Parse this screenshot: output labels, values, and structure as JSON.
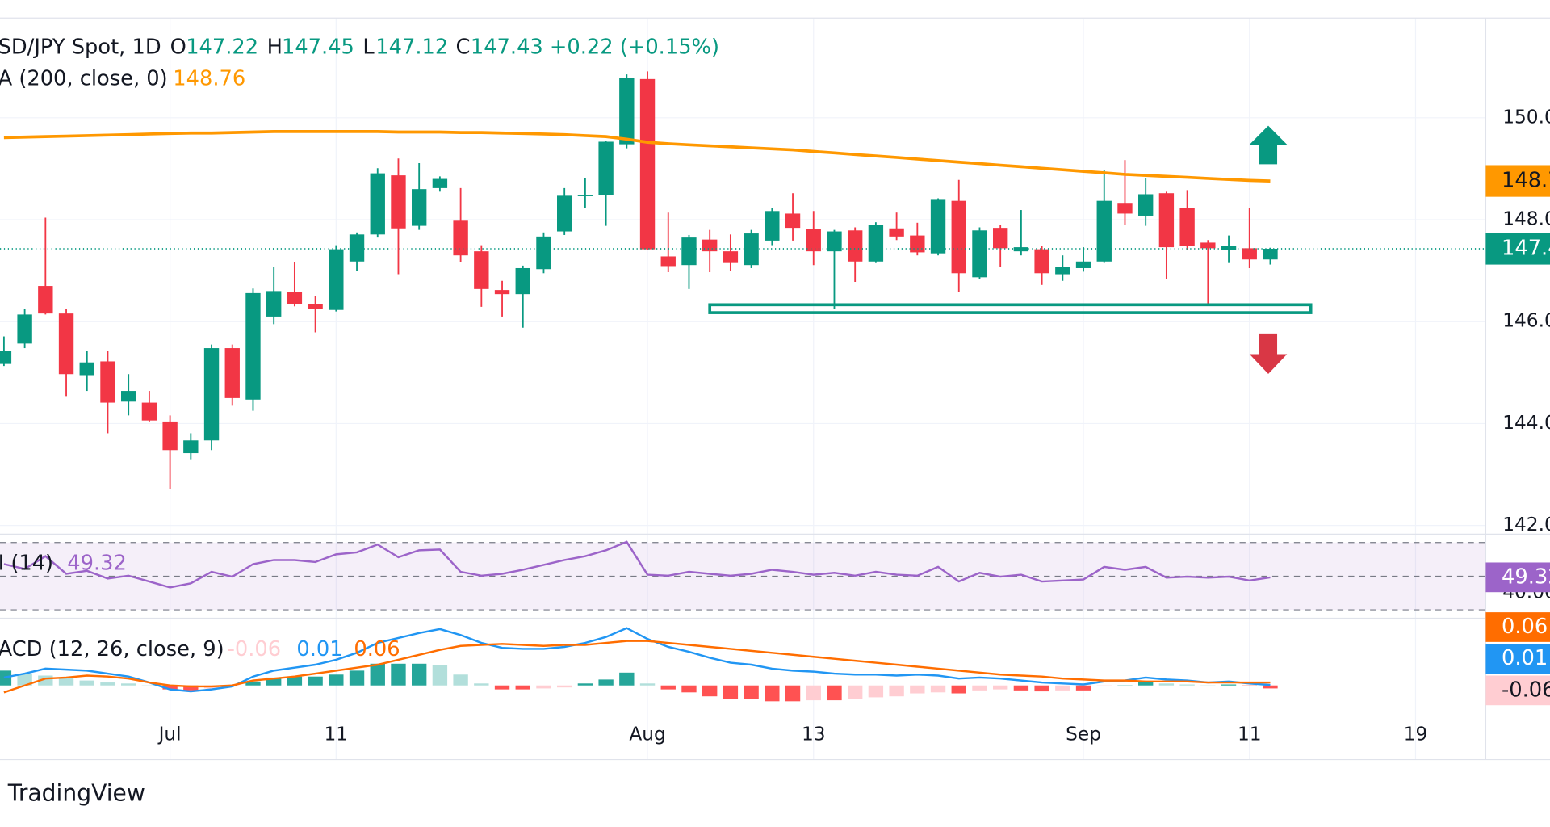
{
  "chart_data": [
    {
      "type": "candlestick",
      "title": "SD/JPY Spot, 1D",
      "ohlc_labels": [
        "O",
        "H",
        "L",
        "C"
      ],
      "change_label": "+0.22 (+0.15%)",
      "up_color": "#089981",
      "down_color": "#f23645",
      "categories": [
        null,
        null,
        null,
        null,
        null,
        null,
        null,
        null,
        "Jul",
        null,
        null,
        null,
        null,
        null,
        null,
        null,
        "11",
        null,
        null,
        null,
        null,
        null,
        null,
        null,
        null,
        null,
        null,
        null,
        null,
        null,
        null,
        "Aug",
        null,
        null,
        null,
        null,
        null,
        null,
        null,
        "13",
        null,
        null,
        null,
        null,
        null,
        null,
        null,
        null,
        null,
        null,
        null,
        null,
        "Sep",
        null,
        null,
        null,
        null,
        null,
        null,
        null,
        "11",
        null,
        null,
        null,
        null,
        null,
        null,
        null,
        "19",
        null,
        null,
        null
      ],
      "open": [
        145.17,
        145.57,
        146.7,
        146.16,
        144.95,
        145.22,
        144.43,
        144.41,
        144.04,
        143.42,
        143.67,
        145.48,
        144.47,
        146.1,
        146.58,
        146.35,
        146.23,
        147.18,
        147.71,
        148.87,
        147.88,
        148.62,
        147.98,
        147.38,
        146.62,
        146.54,
        147.03,
        147.77,
        148.47,
        148.49,
        149.48,
        150.76,
        147.28,
        147.11,
        147.61,
        147.38,
        147.11,
        147.59,
        148.12,
        147.81,
        147.38,
        147.79,
        147.18,
        147.83,
        147.69,
        147.34,
        148.37,
        146.87,
        147.84,
        147.38,
        147.42,
        146.93,
        147.05,
        147.18,
        148.33,
        148.08,
        148.52,
        148.23,
        147.55,
        147.4,
        147.44,
        147.22,
        null,
        null,
        null,
        null,
        null,
        null,
        null,
        null,
        null,
        null
      ],
      "high": [
        145.71,
        146.25,
        148.04,
        146.25,
        145.42,
        145.42,
        144.97,
        144.64,
        144.16,
        143.81,
        145.55,
        145.55,
        146.65,
        147.07,
        147.17,
        146.5,
        147.5,
        147.75,
        149.01,
        149.2,
        149.11,
        148.85,
        148.62,
        147.5,
        146.8,
        147.1,
        147.75,
        148.62,
        148.82,
        149.55,
        150.85,
        150.91,
        148.14,
        147.7,
        147.8,
        147.71,
        147.8,
        148.23,
        148.52,
        148.17,
        147.8,
        147.85,
        147.95,
        148.14,
        147.94,
        148.42,
        148.78,
        147.85,
        147.9,
        148.19,
        147.48,
        147.3,
        147.46,
        148.97,
        149.17,
        148.82,
        148.55,
        148.58,
        147.6,
        147.69,
        148.23,
        147.45,
        null,
        null,
        null,
        null,
        null,
        null,
        null,
        null,
        null,
        null
      ],
      "low": [
        145.13,
        145.48,
        146.14,
        144.54,
        144.64,
        143.81,
        144.16,
        144.04,
        142.72,
        143.3,
        143.48,
        144.35,
        144.25,
        145.95,
        146.3,
        145.79,
        146.2,
        147.0,
        147.65,
        146.93,
        147.8,
        148.55,
        147.17,
        146.29,
        146.1,
        145.88,
        146.95,
        147.7,
        148.23,
        147.88,
        149.4,
        147.4,
        146.97,
        146.64,
        146.97,
        147.0,
        147.05,
        147.5,
        147.59,
        147.11,
        146.25,
        146.78,
        147.15,
        147.6,
        147.3,
        147.3,
        146.58,
        146.83,
        147.07,
        147.3,
        146.72,
        146.8,
        146.98,
        147.15,
        147.9,
        147.88,
        146.83,
        147.4,
        146.33,
        147.15,
        147.05,
        147.12,
        null,
        null,
        null,
        null,
        null,
        null,
        null,
        null,
        null,
        null
      ],
      "close": [
        145.42,
        146.14,
        146.16,
        144.97,
        145.2,
        144.41,
        144.64,
        144.06,
        143.48,
        143.67,
        145.48,
        144.5,
        146.56,
        146.6,
        146.35,
        146.25,
        147.42,
        147.71,
        148.91,
        147.83,
        148.6,
        148.8,
        147.3,
        146.64,
        146.54,
        147.05,
        147.67,
        148.47,
        148.49,
        149.53,
        150.78,
        147.42,
        147.09,
        147.65,
        147.38,
        147.15,
        147.73,
        148.17,
        147.84,
        147.38,
        147.77,
        147.18,
        147.9,
        147.67,
        147.36,
        148.39,
        146.95,
        147.79,
        147.44,
        147.46,
        146.95,
        147.07,
        147.18,
        148.37,
        148.12,
        148.5,
        147.46,
        147.48,
        147.44,
        147.48,
        147.22,
        147.43,
        null,
        null,
        null,
        null,
        null,
        null,
        null,
        null,
        null,
        null
      ],
      "ma": {
        "name": "A (200, close, 0)",
        "color": "#ff9800",
        "values": [
          149.61,
          149.62,
          149.63,
          149.64,
          149.65,
          149.66,
          149.67,
          149.68,
          149.69,
          149.7,
          149.7,
          149.71,
          149.72,
          149.73,
          149.73,
          149.73,
          149.73,
          149.73,
          149.73,
          149.72,
          149.72,
          149.72,
          149.71,
          149.71,
          149.7,
          149.69,
          149.68,
          149.67,
          149.65,
          149.63,
          149.58,
          149.52,
          149.49,
          149.47,
          149.45,
          149.43,
          149.41,
          149.39,
          149.37,
          149.34,
          149.31,
          149.28,
          149.25,
          149.22,
          149.19,
          149.16,
          149.13,
          149.1,
          149.07,
          149.04,
          149.01,
          148.98,
          148.95,
          148.92,
          148.89,
          148.87,
          148.85,
          148.83,
          148.81,
          148.79,
          148.77,
          148.76,
          null,
          null,
          null,
          null,
          null,
          null,
          null,
          null,
          null,
          null
        ]
      },
      "ylim": [
        141.83,
        151.92
      ],
      "yticks": [
        {
          "value": 150,
          "label": "150.0"
        },
        {
          "value": 148,
          "label": "148.0"
        },
        {
          "value": 146,
          "label": "146.0"
        },
        {
          "value": 144,
          "label": "144.0"
        },
        {
          "value": 142,
          "label": "142.0"
        }
      ],
      "grid": true,
      "brand": "TradingView"
    },
    {
      "type": "line",
      "title": "I (14)",
      "color": "#9c64c9",
      "values": [
        57.2,
        54.3,
        61.9,
        51.4,
        53.2,
        48.6,
        50.3,
        46.8,
        43.3,
        45.7,
        52.6,
        49.7,
        57.2,
        59.6,
        59.6,
        58.4,
        63.0,
        64.2,
        68.8,
        61.3,
        65.4,
        65.9,
        52.6,
        50.3,
        51.4,
        53.8,
        56.7,
        59.6,
        61.9,
        65.4,
        70.4,
        50.9,
        50.3,
        52.6,
        51.4,
        50.3,
        51.4,
        53.8,
        52.6,
        50.9,
        52.0,
        50.3,
        52.6,
        50.9,
        50.3,
        55.5,
        46.8,
        52.0,
        49.7,
        50.9,
        46.8,
        47.4,
        48.0,
        55.5,
        53.8,
        55.5,
        49.1,
        49.7,
        49.1,
        49.7,
        47.4,
        49.32,
        null,
        null,
        null,
        null,
        null,
        null,
        null,
        null,
        null,
        null
      ],
      "ylim": [
        25,
        75
      ],
      "yticks": [
        {
          "value": 40,
          "label": "40.00"
        }
      ],
      "levels": [
        70,
        50,
        30
      ]
    },
    {
      "type": "macd",
      "title": "ACD (12, 26, close, 9)",
      "ylim": [
        -1,
        1.4
      ],
      "series": [
        {
          "style": "histogram",
          "color": "#26a69a",
          "light_color": "#b2dfdb",
          "neg_color": "#ff5252",
          "neg_light_color": "#ffcdd2",
          "values": [
            0.3,
            0.24,
            0.2,
            0.16,
            0.1,
            0.06,
            0.04,
            0,
            -0.08,
            -0.1,
            -0.06,
            -0.02,
            0.08,
            0.16,
            0.18,
            0.18,
            0.22,
            0.3,
            0.44,
            0.44,
            0.44,
            0.42,
            0.22,
            0.04,
            -0.08,
            -0.08,
            -0.06,
            -0.04,
            0.04,
            0.12,
            0.26,
            0.04,
            -0.08,
            -0.14,
            -0.22,
            -0.28,
            -0.28,
            -0.32,
            -0.32,
            -0.3,
            -0.3,
            -0.28,
            -0.24,
            -0.22,
            -0.16,
            -0.14,
            -0.16,
            -0.1,
            -0.08,
            -0.1,
            -0.12,
            -0.1,
            -0.1,
            -0.02,
            0,
            0.08,
            0.04,
            0.02,
            0,
            0.02,
            -0.02,
            -0.06,
            null,
            null,
            null,
            null,
            null,
            null,
            null,
            null,
            null,
            null
          ]
        },
        {
          "style": "line",
          "color": "#2196f3",
          "values": [
            0.16,
            0.24,
            0.34,
            0.32,
            0.3,
            0.24,
            0.18,
            0.06,
            -0.08,
            -0.12,
            -0.08,
            -0.02,
            0.18,
            0.3,
            0.36,
            0.42,
            0.52,
            0.66,
            0.86,
            0.96,
            1.06,
            1.14,
            1.02,
            0.86,
            0.76,
            0.74,
            0.74,
            0.78,
            0.86,
            0.98,
            1.16,
            0.94,
            0.78,
            0.68,
            0.56,
            0.46,
            0.42,
            0.34,
            0.3,
            0.28,
            0.24,
            0.22,
            0.22,
            0.2,
            0.22,
            0.2,
            0.14,
            0.16,
            0.14,
            0.1,
            0.06,
            0.04,
            0.02,
            0.08,
            0.1,
            0.16,
            0.12,
            0.1,
            0.06,
            0.08,
            0.04,
            0.01,
            null,
            null,
            null,
            null,
            null,
            null,
            null,
            null,
            null,
            null
          ]
        },
        {
          "style": "line",
          "color": "#ff6d00",
          "values": [
            -0.14,
            0,
            0.14,
            0.16,
            0.2,
            0.18,
            0.14,
            0.06,
            0,
            -0.02,
            -0.02,
            0,
            0.1,
            0.14,
            0.18,
            0.24,
            0.3,
            0.36,
            0.42,
            0.52,
            0.62,
            0.72,
            0.8,
            0.82,
            0.84,
            0.82,
            0.8,
            0.82,
            0.82,
            0.86,
            0.9,
            0.9,
            0.86,
            0.82,
            0.78,
            0.74,
            0.7,
            0.66,
            0.62,
            0.58,
            0.54,
            0.5,
            0.46,
            0.42,
            0.38,
            0.34,
            0.3,
            0.26,
            0.22,
            0.2,
            0.18,
            0.14,
            0.12,
            0.1,
            0.1,
            0.08,
            0.08,
            0.08,
            0.06,
            0.06,
            0.06,
            0.06,
            null,
            null,
            null,
            null,
            null,
            null,
            null,
            null,
            null,
            null
          ]
        }
      ]
    }
  ]
}
